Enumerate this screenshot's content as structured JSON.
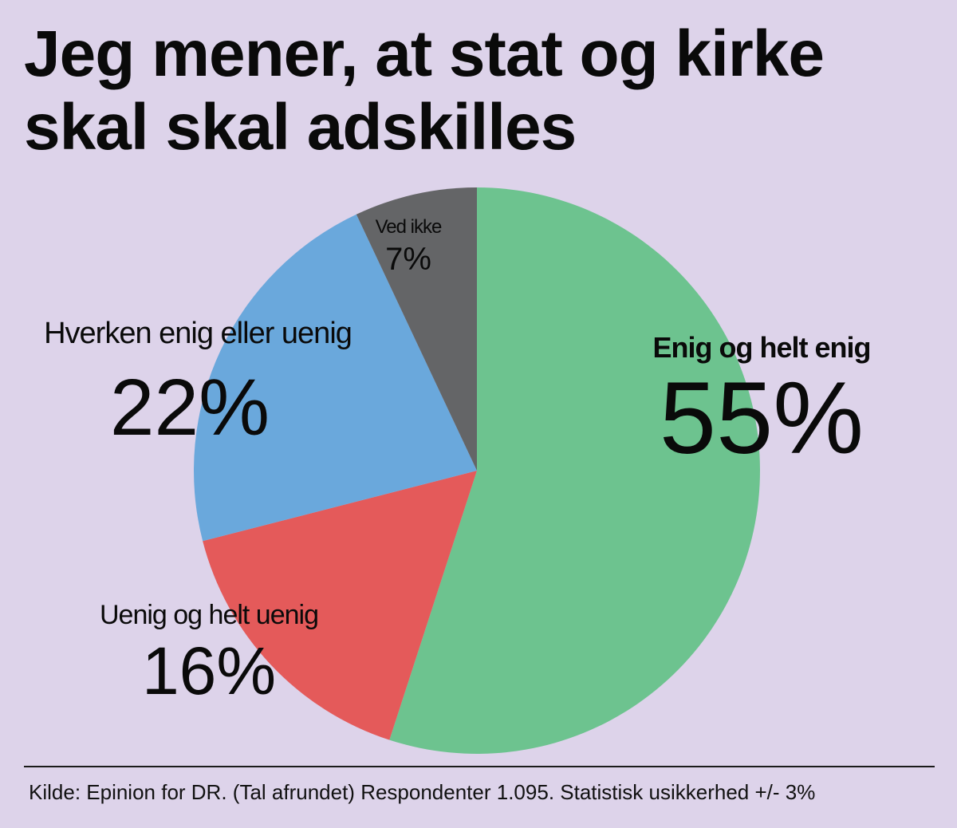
{
  "title_lines": [
    "Jeg mener, at stat og kirke",
    "skal skal adskilles"
  ],
  "source": "Kilde: Epinion for DR. (Tal afrundet) Respondenter 1.095. Statistisk usikkerhed +/- 3%",
  "chart_data": {
    "type": "pie",
    "title": "Jeg mener, at stat og kirke skal skal adskilles",
    "start_angle": "12 o'clock",
    "direction": "clockwise",
    "slices": [
      {
        "label": "Enig og helt enig",
        "value": 55,
        "value_label": "55%",
        "color": "#6dc38f"
      },
      {
        "label": "Uenig og helt uenig",
        "value": 16,
        "value_label": "16%",
        "color": "#e45a5a"
      },
      {
        "label": "Hverken enig eller uenig",
        "value": 22,
        "value_label": "22%",
        "color": "#6aa8dc"
      },
      {
        "label": "Ved ikke",
        "value": 7,
        "value_label": "7%",
        "color": "#646567"
      }
    ]
  }
}
